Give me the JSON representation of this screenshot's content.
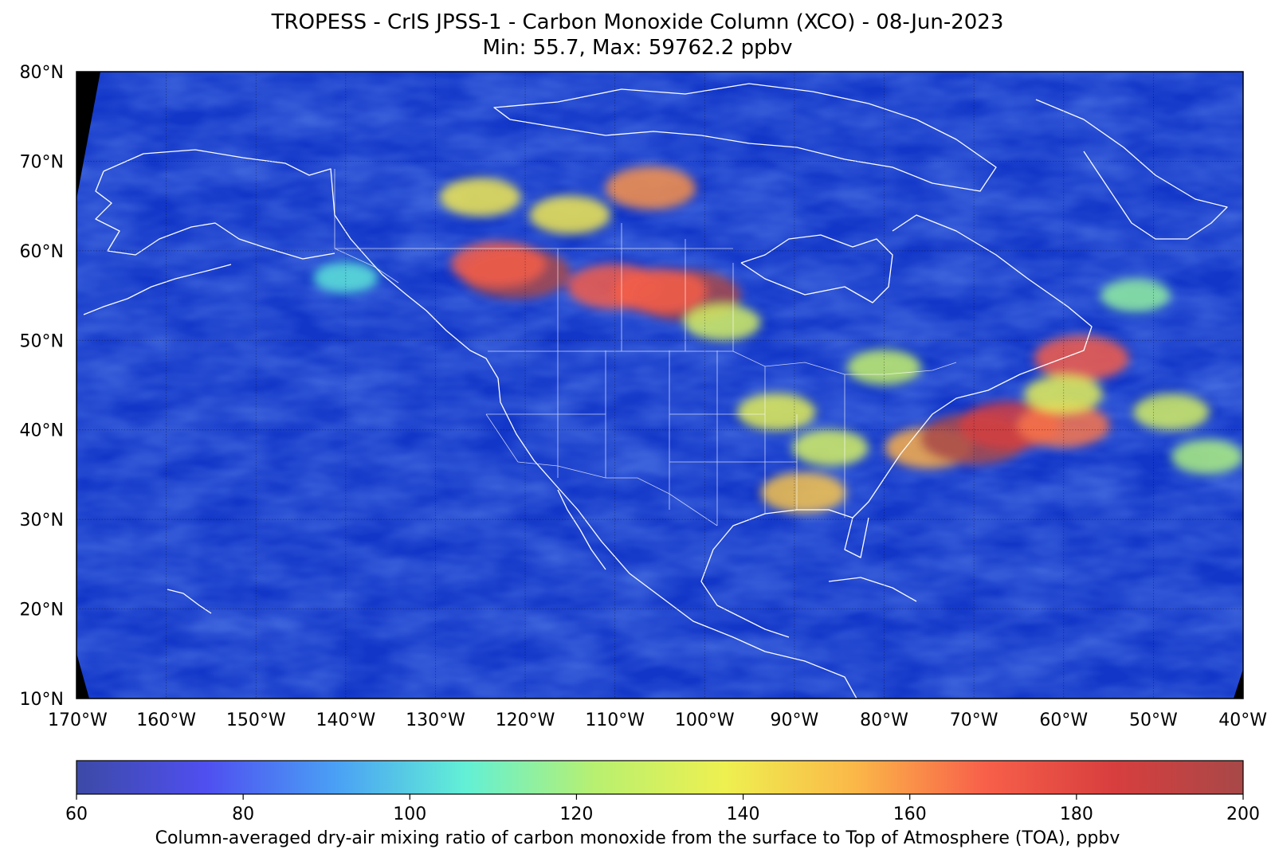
{
  "title": {
    "line1": "TROPESS - CrIS JPSS-1 - Carbon Monoxide Column (XCO) - 08-Jun-2023",
    "line2": "Min: 55.7, Max: 59762.2 ppbv"
  },
  "map": {
    "projection": "equirectangular",
    "lon_range": [
      -170,
      -40
    ],
    "lat_range": [
      10,
      80
    ],
    "lon_ticks": [
      {
        "value": -170,
        "label": "170°W"
      },
      {
        "value": -160,
        "label": "160°W"
      },
      {
        "value": -150,
        "label": "150°W"
      },
      {
        "value": -140,
        "label": "140°W"
      },
      {
        "value": -130,
        "label": "130°W"
      },
      {
        "value": -120,
        "label": "120°W"
      },
      {
        "value": -110,
        "label": "110°W"
      },
      {
        "value": -100,
        "label": "100°W"
      },
      {
        "value": -90,
        "label": "90°W"
      },
      {
        "value": -80,
        "label": "80°W"
      },
      {
        "value": -70,
        "label": "70°W"
      },
      {
        "value": -60,
        "label": "60°W"
      },
      {
        "value": -50,
        "label": "50°W"
      },
      {
        "value": -40,
        "label": "40°W"
      }
    ],
    "lat_ticks": [
      {
        "value": 80,
        "label": "80°N"
      },
      {
        "value": 70,
        "label": "70°N"
      },
      {
        "value": 60,
        "label": "60°N"
      },
      {
        "value": 50,
        "label": "50°N"
      },
      {
        "value": 40,
        "label": "40°N"
      },
      {
        "value": 30,
        "label": "30°N"
      },
      {
        "value": 20,
        "label": "20°N"
      },
      {
        "value": 10,
        "label": "10°N"
      }
    ],
    "gridlines": true,
    "background_color": "#1236c8",
    "coastline_color": "#ffffff",
    "co_features": [
      {
        "lon": -125,
        "lat": 66,
        "value": 140
      },
      {
        "lon": -115,
        "lat": 64,
        "value": 140
      },
      {
        "lon": -106,
        "lat": 67,
        "value": 160
      },
      {
        "lon": -121,
        "lat": 57.5,
        "value": 200
      },
      {
        "lon": -123,
        "lat": 58.5,
        "value": 170
      },
      {
        "lon": -110,
        "lat": 56,
        "value": 170
      },
      {
        "lon": -102,
        "lat": 55,
        "value": 200
      },
      {
        "lon": -105,
        "lat": 55.5,
        "value": 170
      },
      {
        "lon": -98,
        "lat": 52,
        "value": 130
      },
      {
        "lon": -92,
        "lat": 42,
        "value": 135
      },
      {
        "lon": -86,
        "lat": 38,
        "value": 130
      },
      {
        "lon": -89,
        "lat": 33,
        "value": 150
      },
      {
        "lon": -75,
        "lat": 38,
        "value": 155
      },
      {
        "lon": -70,
        "lat": 39,
        "value": 200
      },
      {
        "lon": -66,
        "lat": 40.5,
        "value": 185
      },
      {
        "lon": -60,
        "lat": 40.5,
        "value": 165
      },
      {
        "lon": -58,
        "lat": 48,
        "value": 170
      },
      {
        "lon": -60,
        "lat": 44,
        "value": 135
      },
      {
        "lon": -48,
        "lat": 42,
        "value": 130
      },
      {
        "lon": -44,
        "lat": 37,
        "value": 120
      },
      {
        "lon": -52,
        "lat": 55,
        "value": 115
      },
      {
        "lon": -80,
        "lat": 47,
        "value": 125
      },
      {
        "lon": -140,
        "lat": 57,
        "value": 105
      }
    ]
  },
  "colorbar": {
    "min": 60,
    "max": 200,
    "ticks": [
      {
        "value": 60,
        "label": "60"
      },
      {
        "value": 80,
        "label": "80"
      },
      {
        "value": 100,
        "label": "100"
      },
      {
        "value": 120,
        "label": "120"
      },
      {
        "value": 140,
        "label": "140"
      },
      {
        "value": 160,
        "label": "160"
      },
      {
        "value": 180,
        "label": "180"
      },
      {
        "value": 200,
        "label": "200"
      }
    ],
    "colors": [
      "#3d4aa6",
      "#4f4ff0",
      "#4aa0f5",
      "#62f0d6",
      "#b8f070",
      "#eef050",
      "#fbb848",
      "#f8604a",
      "#d83e3e",
      "#a84848"
    ],
    "label": "Column-averaged dry-air mixing ratio of carbon monoxide from the surface to Top of Atmosphere (TOA), ppbv"
  }
}
